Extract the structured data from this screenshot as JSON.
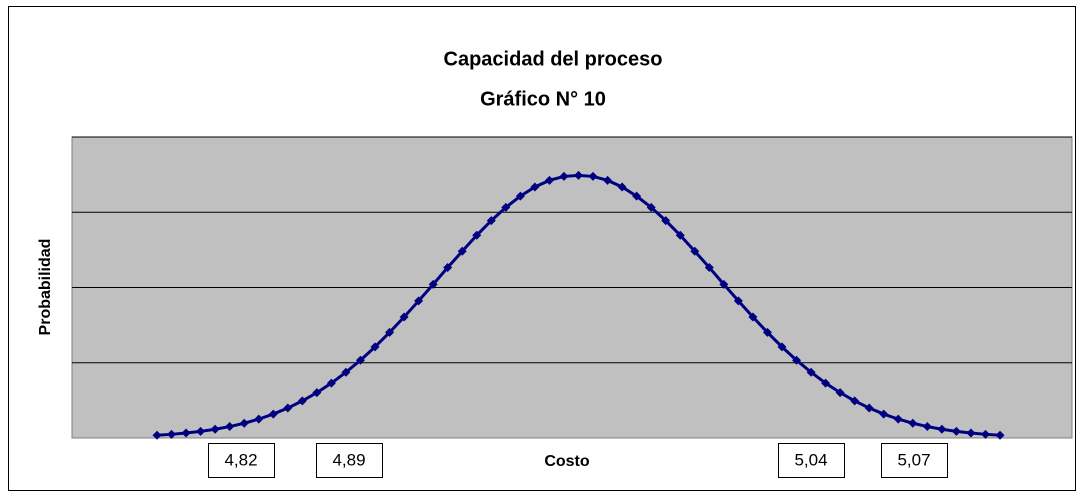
{
  "chart_data": {
    "type": "line",
    "title": "Capacidad del proceso",
    "subtitle": "Gráfico N° 10",
    "xlabel": "Costo",
    "ylabel": "Probabilidad",
    "ylim": [
      0,
      4
    ],
    "yticks": [
      1,
      2,
      3,
      4
    ],
    "grid": true,
    "series": [
      {
        "color": "#000080",
        "values": [
          0.036,
          0.049,
          0.066,
          0.088,
          0.116,
          0.152,
          0.196,
          0.251,
          0.318,
          0.398,
          0.493,
          0.603,
          0.729,
          0.874,
          1.034,
          1.211,
          1.403,
          1.608,
          1.822,
          2.042,
          2.266,
          2.482,
          2.694,
          2.889,
          3.065,
          3.214,
          3.336,
          3.424,
          3.476,
          3.49,
          3.476,
          3.424,
          3.336,
          3.214,
          3.065,
          2.889,
          2.694,
          2.482,
          2.266,
          2.042,
          1.822,
          1.608,
          1.403,
          1.211,
          1.034,
          0.874,
          0.729,
          0.603,
          0.493,
          0.398,
          0.318,
          0.251,
          0.196,
          0.152,
          0.116,
          0.088,
          0.066,
          0.049,
          0.036
        ]
      }
    ],
    "annotations": [
      "4,82",
      "4,89",
      "5,04",
      "5,07"
    ]
  }
}
